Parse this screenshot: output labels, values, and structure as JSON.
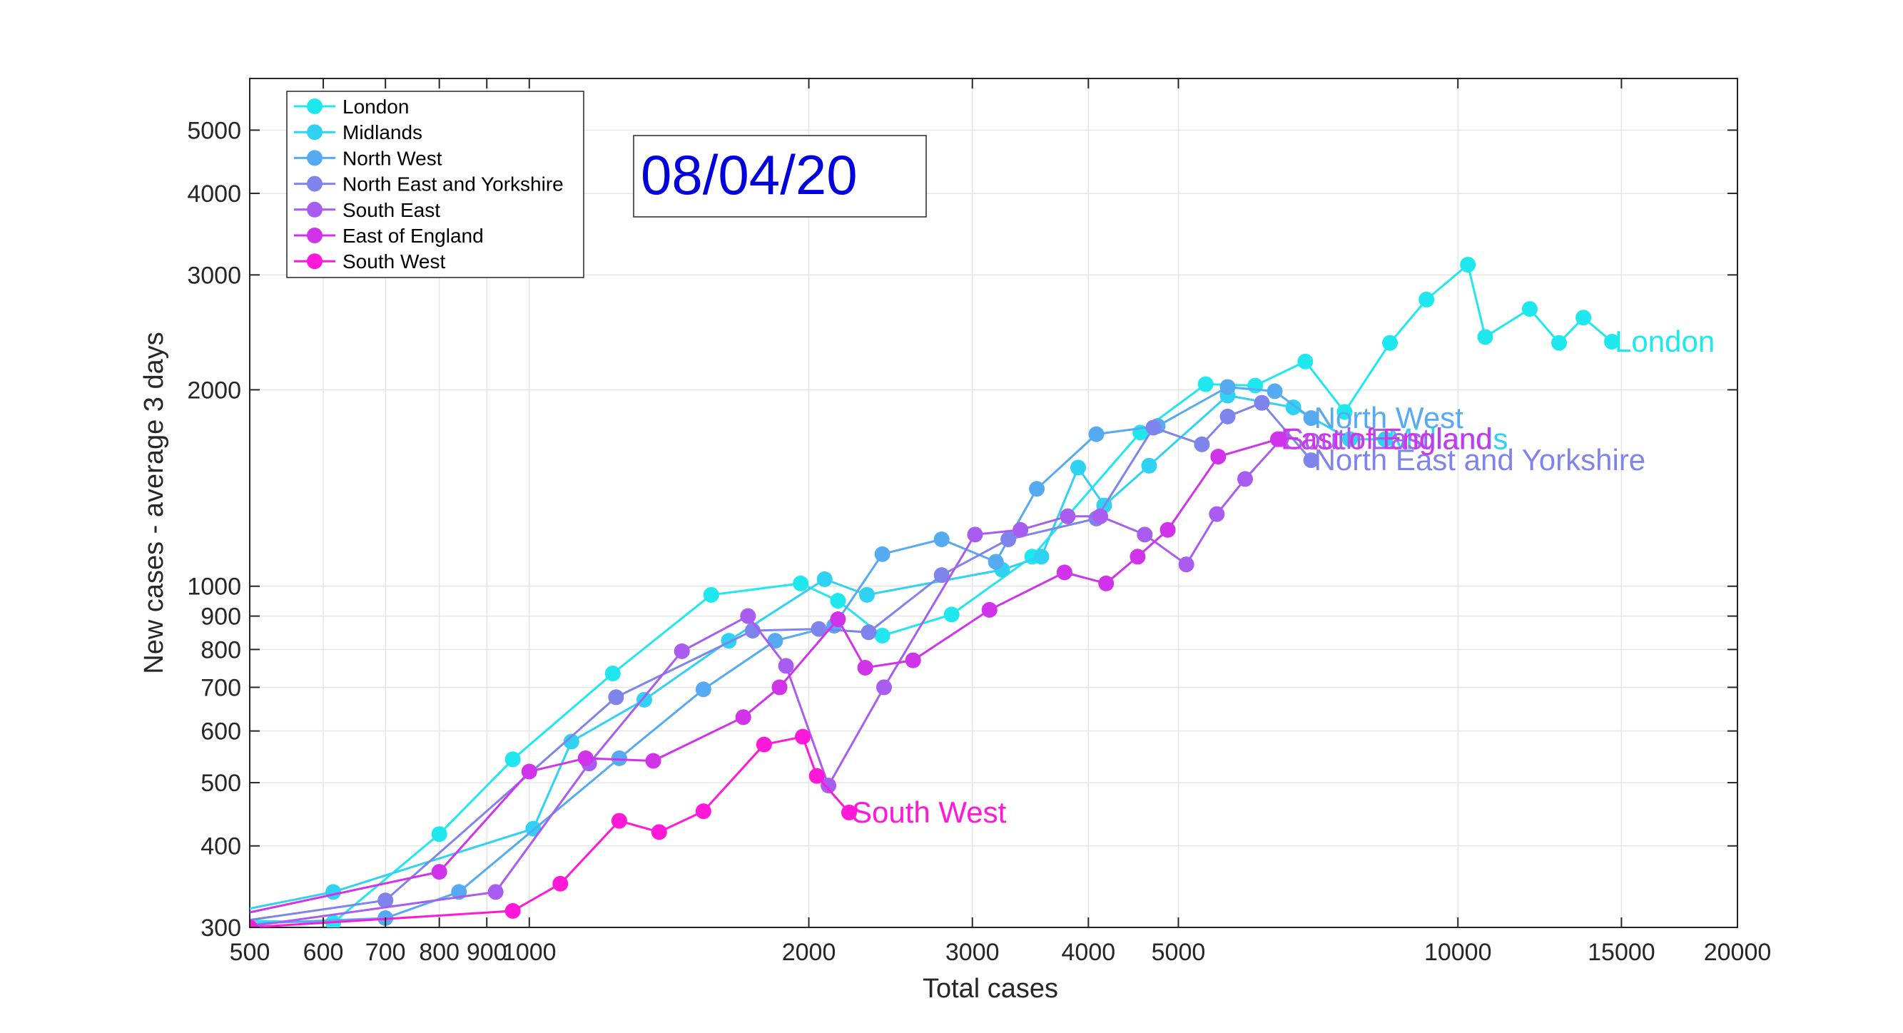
{
  "chart_data": {
    "type": "line",
    "xlabel": "Total cases",
    "ylabel": "New cases - average 3 days",
    "x_scale": "log",
    "y_scale": "log",
    "xlim": [
      500,
      20000
    ],
    "ylim": [
      300,
      6000
    ],
    "xticks": [
      500,
      600,
      700,
      800,
      900,
      1000,
      2000,
      3000,
      4000,
      5000,
      10000,
      15000,
      20000
    ],
    "xtick_labels": [
      "500",
      "600",
      "700",
      "800",
      "900",
      "1000",
      "2000",
      "3000",
      "4000",
      "5000",
      "10000",
      "15000",
      "20000"
    ],
    "yticks": [
      300,
      400,
      500,
      600,
      700,
      800,
      900,
      1000,
      2000,
      3000,
      4000,
      5000
    ],
    "ytick_labels": [
      "300",
      "400",
      "500",
      "600",
      "700",
      "800",
      "900",
      "1000",
      "2000",
      "3000",
      "4000",
      "5000"
    ],
    "grid": true,
    "legend_position": "top-left",
    "annotation": "08/04/20",
    "series": [
      {
        "name": "London",
        "color": "#1ee8ee",
        "end_label": "London",
        "x": [
          380,
          615,
          800,
          960,
          1230,
          1570,
          1960,
          2150,
          2400,
          2850,
          3480,
          4550,
          5350,
          6050,
          6850,
          7550,
          8450,
          9250,
          10250,
          10700,
          11950,
          12850,
          13650,
          14650
        ],
        "y": [
          310,
          305,
          417,
          543,
          735,
          970,
          1010,
          950,
          840,
          905,
          1110,
          1720,
          2040,
          2030,
          2210,
          1850,
          2360,
          2750,
          3110,
          2410,
          2660,
          2360,
          2580,
          2370
        ]
      },
      {
        "name": "Midlands",
        "color": "#2fd2f2",
        "end_label": "Midlands",
        "x": [
          395,
          615,
          1010,
          1110,
          1330,
          1640,
          2080,
          2310,
          3230,
          3560,
          3900,
          4160,
          4650,
          5650,
          6650,
          7650,
          8350
        ],
        "y": [
          300,
          340,
          425,
          578,
          670,
          825,
          1025,
          970,
          1060,
          1110,
          1520,
          1330,
          1530,
          1960,
          1880,
          1680,
          1680
        ]
      },
      {
        "name": "North West",
        "color": "#55aaf2",
        "end_label": "North West",
        "x": [
          400,
          700,
          840,
          1250,
          1540,
          1840,
          2130,
          2400,
          2780,
          3180,
          3520,
          4080,
          4750,
          5650,
          6350,
          6950
        ],
        "y": [
          300,
          310,
          340,
          545,
          695,
          825,
          870,
          1120,
          1180,
          1090,
          1410,
          1710,
          1760,
          2020,
          1990,
          1810
        ]
      },
      {
        "name": "North East and Yorkshire",
        "color": "#7f84ec",
        "end_label": "North East and Yorkshire",
        "x": [
          440,
          700,
          1240,
          1740,
          2050,
          2320,
          2780,
          3280,
          4080,
          4700,
          5300,
          5650,
          6150,
          6950
        ],
        "y": [
          300,
          330,
          676,
          855,
          860,
          850,
          1040,
          1180,
          1270,
          1750,
          1650,
          1820,
          1910,
          1560
        ]
      },
      {
        "name": "South East",
        "color": "#a85cf0",
        "end_label": "South East",
        "x": [
          490,
          920,
          1160,
          1460,
          1720,
          1890,
          2100,
          2410,
          3020,
          3380,
          3800,
          4120,
          4600,
          5100,
          5500,
          5900,
          6450
        ],
        "y": [
          300,
          340,
          535,
          795,
          900,
          755,
          495,
          700,
          1200,
          1220,
          1280,
          1280,
          1200,
          1080,
          1290,
          1460,
          1680
        ]
      },
      {
        "name": "East of England",
        "color": "#d033ea",
        "end_label": "East of England",
        "x": [
          420,
          800,
          1000,
          1150,
          1360,
          1700,
          1860,
          2150,
          2300,
          2590,
          3130,
          3770,
          4180,
          4520,
          4870,
          5520,
          6400
        ],
        "y": [
          300,
          365,
          520,
          545,
          540,
          630,
          700,
          890,
          750,
          770,
          920,
          1050,
          1010,
          1110,
          1220,
          1580,
          1680
        ]
      },
      {
        "name": "South West",
        "color": "#ff18d8",
        "end_label": "South West",
        "x": [
          500,
          960,
          1080,
          1250,
          1380,
          1540,
          1790,
          1970,
          2040,
          2210
        ],
        "y": [
          300,
          318,
          350,
          437,
          420,
          452,
          572,
          588,
          512,
          450
        ]
      }
    ]
  }
}
